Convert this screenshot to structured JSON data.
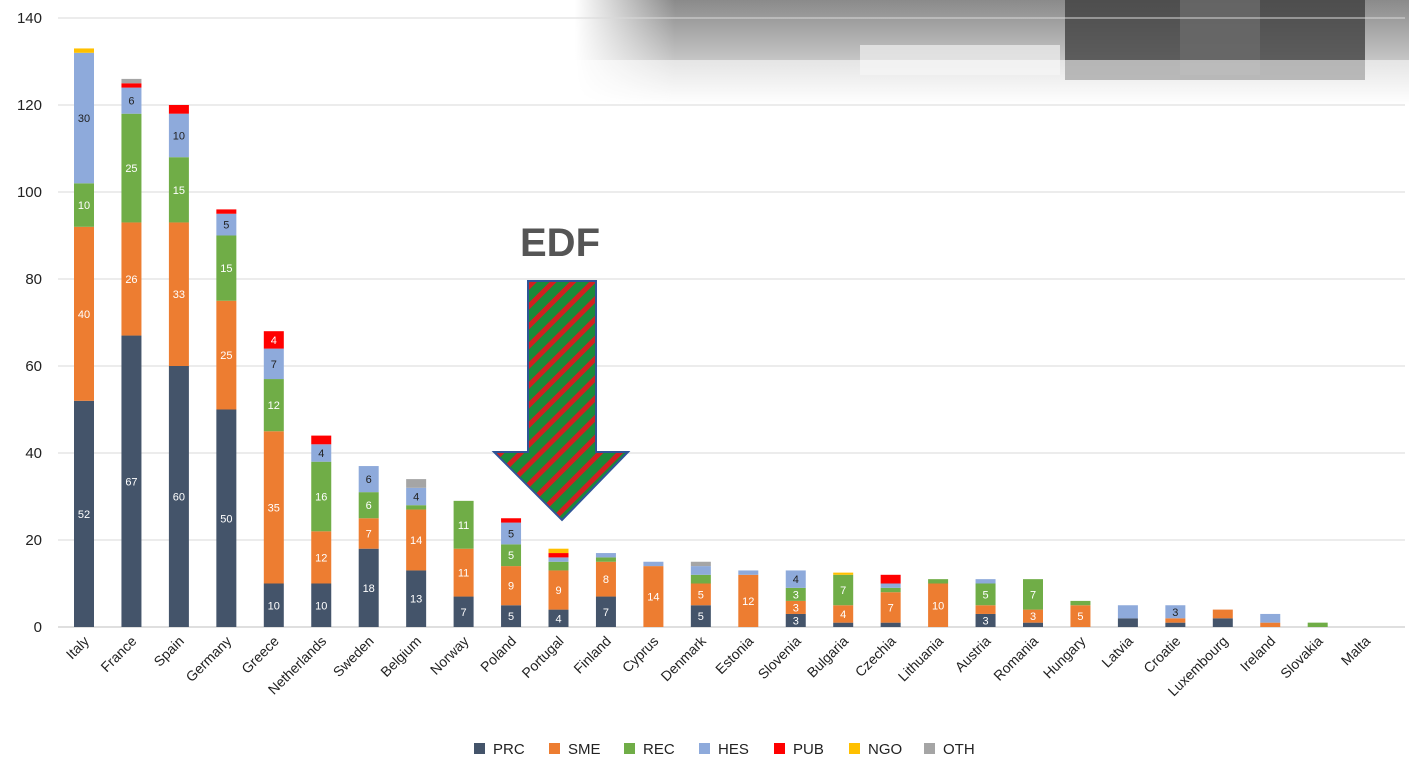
{
  "chart_data": {
    "type": "bar",
    "stacked": true,
    "ylim": [
      0,
      140
    ],
    "yticks": [
      0,
      20,
      40,
      60,
      80,
      100,
      120,
      140
    ],
    "grid": true,
    "legend_position": "bottom",
    "categories": [
      "Italy",
      "France",
      "Spain",
      "Germany",
      "Greece",
      "Netherlands",
      "Sweden",
      "Belgium",
      "Norway",
      "Poland",
      "Portugal",
      "Finland",
      "Cyprus",
      "Denmark",
      "Estonia",
      "Slovenia",
      "Bulgaria",
      "Czechia",
      "Lithuania",
      "Austria",
      "Romania",
      "Hungary",
      "Latvia",
      "Croatie",
      "Luxembourg",
      "Ireland",
      "Slovakia",
      "Malta"
    ],
    "series": [
      {
        "name": "PRC",
        "color": "#44546a",
        "label_color": "#ffffff",
        "values": [
          52,
          67,
          60,
          50,
          10,
          10,
          18,
          13,
          7,
          5,
          4,
          7,
          0,
          5,
          0,
          3,
          1,
          1,
          0,
          3,
          1,
          0,
          2,
          1,
          2,
          0,
          0,
          0
        ],
        "labels": [
          "52",
          "67",
          "60",
          "50",
          "10",
          "10",
          "18",
          "13",
          "7",
          "5",
          "4",
          "7",
          "",
          "5",
          "",
          "3",
          "",
          "",
          "",
          "3",
          "",
          "",
          "",
          "",
          "",
          "",
          "",
          ""
        ]
      },
      {
        "name": "SME",
        "color": "#ed7d31",
        "label_color": "#ffffff",
        "values": [
          40,
          26,
          33,
          25,
          35,
          12,
          7,
          14,
          11,
          9,
          9,
          8,
          14,
          5,
          12,
          3,
          4,
          7,
          10,
          2,
          3,
          5,
          0,
          1,
          2,
          1,
          0,
          0
        ],
        "labels": [
          "40",
          "26",
          "33",
          "25",
          "35",
          "12",
          "7",
          "14",
          "11",
          "9",
          "9",
          "8",
          "14",
          "5",
          "12",
          "3",
          "4",
          "7",
          "10",
          "",
          "3",
          "5",
          "",
          "",
          "",
          "",
          "",
          ""
        ]
      },
      {
        "name": "REC",
        "color": "#70ad47",
        "label_color": "#ffffff",
        "values": [
          10,
          25,
          15,
          15,
          12,
          16,
          6,
          1,
          11,
          5,
          2,
          1,
          0,
          2,
          0,
          3,
          7,
          1,
          1,
          5,
          7,
          1,
          0,
          0,
          0,
          0,
          1,
          0
        ],
        "labels": [
          "10",
          "25",
          "15",
          "15",
          "12",
          "16",
          "6",
          "",
          "11",
          "5",
          "",
          "",
          "",
          "",
          "",
          "3",
          "7",
          "",
          "",
          "5",
          "7",
          "",
          "",
          "",
          "",
          "",
          "",
          ""
        ]
      },
      {
        "name": "HES",
        "color": "#8eaadb",
        "label_color": "#222222",
        "values": [
          30,
          6,
          10,
          5,
          7,
          4,
          6,
          4,
          0,
          5,
          1,
          1,
          1,
          2,
          1,
          4,
          0,
          1,
          0,
          1,
          0,
          0,
          3,
          3,
          0,
          2,
          0,
          0
        ],
        "labels": [
          "30",
          "6",
          "10",
          "5",
          "7",
          "4",
          "6",
          "4",
          "",
          "5",
          "",
          "",
          "",
          "",
          "",
          "4",
          "",
          "",
          "",
          "",
          "",
          "",
          "",
          "3",
          "",
          "",
          "",
          ""
        ]
      },
      {
        "name": "PUB",
        "color": "#ff0000",
        "label_color": "#ffffff",
        "values": [
          0,
          1,
          2,
          1,
          4,
          2,
          0,
          0,
          0,
          1,
          1,
          0,
          0,
          0,
          0,
          0,
          0,
          2,
          0,
          0,
          0,
          0,
          0,
          0,
          0,
          0,
          0,
          0
        ],
        "labels": [
          "",
          "",
          "",
          "",
          "4",
          "",
          "",
          "",
          "",
          "",
          "",
          "",
          "",
          "",
          "",
          "",
          "",
          "",
          "",
          "",
          "",
          "",
          "",
          "",
          "",
          "",
          "",
          ""
        ]
      },
      {
        "name": "NGO",
        "color": "#ffc000",
        "label_color": "#222222",
        "values": [
          1,
          0,
          0,
          0,
          0,
          0,
          0,
          0,
          0,
          0,
          1,
          0,
          0,
          0,
          0,
          0,
          0.5,
          0,
          0,
          0,
          0,
          0,
          0,
          0,
          0,
          0,
          0,
          0
        ],
        "labels": [
          "",
          "",
          "",
          "",
          "",
          "",
          "",
          "",
          "",
          "",
          "",
          "",
          "",
          "",
          "",
          "",
          "",
          "",
          "",
          "",
          "",
          "",
          "",
          "",
          "",
          "",
          "",
          ""
        ]
      },
      {
        "name": "OTH",
        "color": "#a5a5a5",
        "label_color": "#222222",
        "values": [
          0,
          1,
          0,
          0,
          0,
          0,
          0,
          2,
          0,
          0,
          0,
          0,
          0,
          1,
          0,
          0,
          0,
          0,
          0,
          0,
          0,
          0,
          0,
          0,
          0,
          0,
          0,
          0
        ],
        "labels": [
          "",
          "",
          "",
          "",
          "",
          "",
          "",
          "",
          "",
          "",
          "",
          "",
          "",
          "",
          "",
          "",
          "",
          "",
          "",
          "",
          "",
          "",
          "",
          "",
          "",
          "",
          "",
          ""
        ]
      }
    ],
    "annotations": [
      {
        "text": "EDF",
        "type": "down-arrow",
        "fill": "green-red diagonal stripes",
        "points_to": "Portugal"
      }
    ]
  },
  "photo": {
    "description": "faded photograph of people in uniform",
    "location": "top-right"
  }
}
